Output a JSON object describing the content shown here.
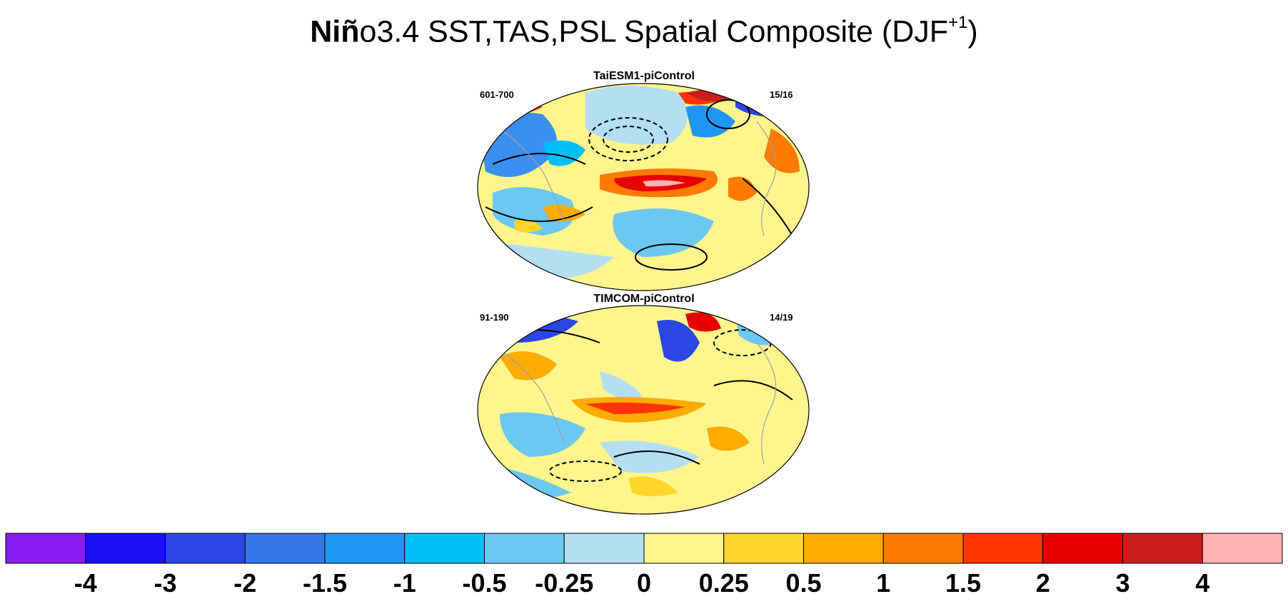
{
  "title": {
    "bold_part": "Niñ",
    "rest": "o3.4 SST,TAS,PSL Spatial Composite (DJF",
    "superscript": "+1",
    "close": ")"
  },
  "panels": [
    {
      "name": "TaiESM1-piControl",
      "years": "601-700",
      "count": "15/16"
    },
    {
      "name": "TIMCOM-piControl",
      "years": "91-190",
      "count": "14/19"
    }
  ],
  "colorbar": {
    "colors": [
      "#8a1cf2",
      "#1c10f5",
      "#2b46e6",
      "#3575e8",
      "#1f96f5",
      "#00bff8",
      "#6cc8f2",
      "#b4def2",
      "#fff58c",
      "#ffd52a",
      "#ffab00",
      "#ff7a00",
      "#ff3300",
      "#e60000",
      "#cc1d1d",
      "#ffb3b3"
    ],
    "labels": [
      "-4",
      "-3",
      "-2",
      "-1.5",
      "-1",
      "-0.5",
      "-0.25",
      "0",
      "0.25",
      "0.5",
      "1",
      "1.5",
      "2",
      "3",
      "4"
    ]
  }
}
